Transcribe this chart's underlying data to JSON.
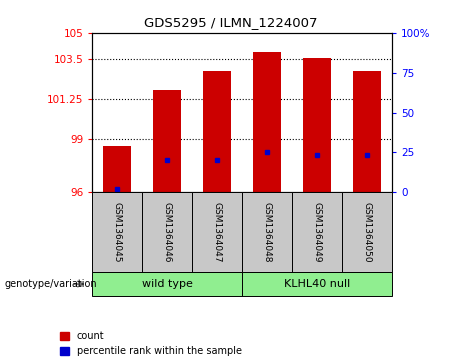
{
  "title": "GDS5295 / ILMN_1224007",
  "samples": [
    "GSM1364045",
    "GSM1364046",
    "GSM1364047",
    "GSM1364048",
    "GSM1364049",
    "GSM1364050"
  ],
  "group_labels": [
    "wild type",
    "KLHL40 null"
  ],
  "bar_tops": [
    98.6,
    101.75,
    102.85,
    103.9,
    103.6,
    102.85
  ],
  "bar_bottom": 96.0,
  "blue_positions": [
    96.2,
    97.85,
    97.85,
    98.25,
    98.1,
    98.1
  ],
  "ylim_left": [
    96,
    105
  ],
  "yticks_left": [
    96,
    99,
    101.25,
    103.5,
    105
  ],
  "ytick_labels_left": [
    "96",
    "99",
    "101.25",
    "103.5",
    "105"
  ],
  "yticks_right": [
    0,
    25,
    50,
    75,
    100
  ],
  "ytick_labels_right": [
    "0",
    "25",
    "50",
    "75",
    "100%"
  ],
  "bar_color": "#CC0000",
  "blue_color": "#0000CC",
  "legend_count_label": "count",
  "legend_pct_label": "percentile rank within the sample",
  "genotype_label": "genotype/variation",
  "sample_area_color": "#C8C8C8",
  "green_color": "#90EE90"
}
